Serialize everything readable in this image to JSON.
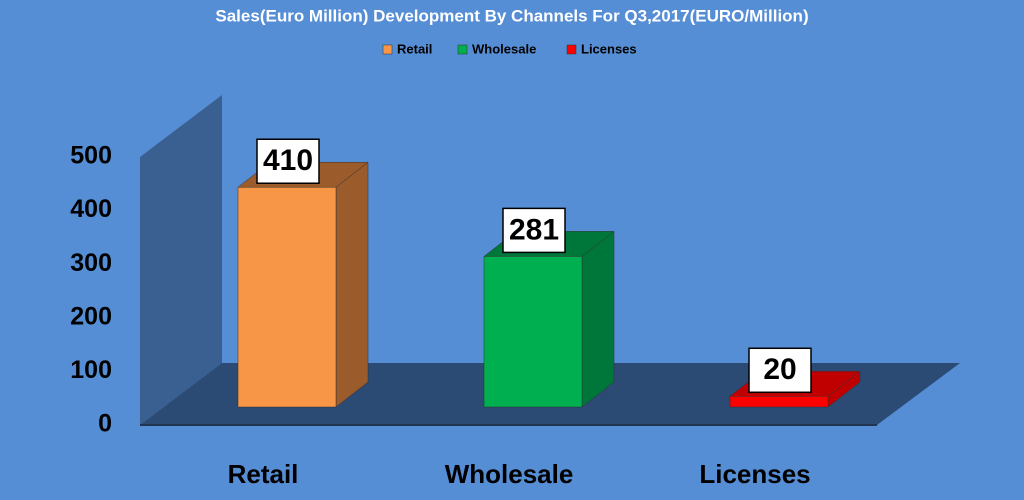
{
  "chart_data": {
    "type": "bar3d",
    "title": "Sales(Euro Million) Development By Channels For Q3,2017(EURO/Million)",
    "categories": [
      "Retail",
      "Wholesale",
      "Licenses"
    ],
    "values": [
      410,
      281,
      20
    ],
    "colors": [
      "#f79646",
      "#00b050",
      "#ff0000"
    ],
    "side_colors": [
      "#9c5b2a",
      "#00773a",
      "#c00000"
    ],
    "ylim": [
      0,
      500
    ],
    "yticks": [
      0,
      100,
      200,
      300,
      400,
      500
    ],
    "legend": "top"
  }
}
